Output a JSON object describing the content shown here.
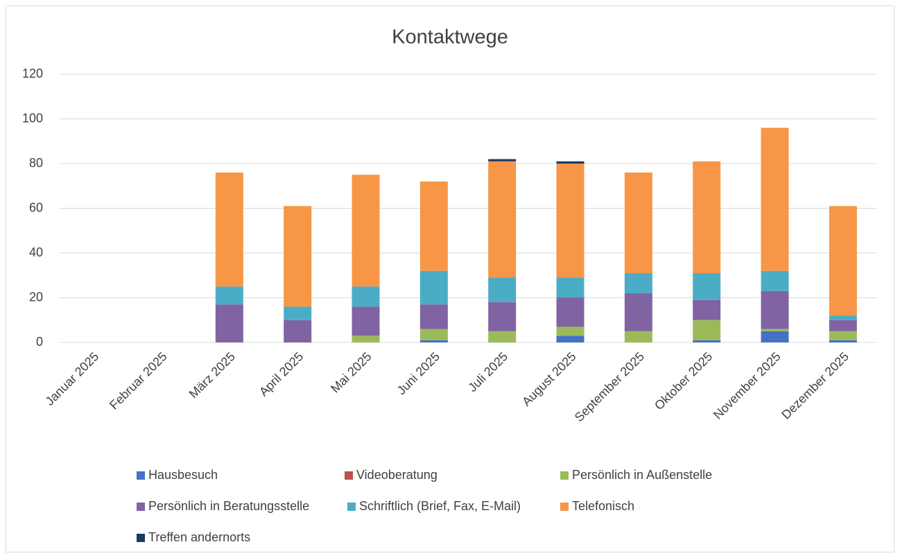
{
  "chart_data": {
    "type": "bar",
    "stacked": true,
    "title": "Kontaktwege",
    "categories": [
      "Januar 2025",
      "Februar 2025",
      "März 2025",
      "April 2025",
      "Mai 2025",
      "Juni 2025",
      "Juli 2025",
      "August 2025",
      "September 2025",
      "Oktober 2025",
      "November 2025",
      "Dezember 2025"
    ],
    "series": [
      {
        "name": "Hausbesuch",
        "color": "#4472c4",
        "values": [
          0,
          0,
          0,
          0,
          0,
          1,
          0,
          3,
          0,
          1,
          5,
          1
        ]
      },
      {
        "name": "Videoberatung",
        "color": "#c0504d",
        "values": [
          0,
          0,
          0,
          0,
          0,
          0,
          0,
          0,
          0,
          0,
          0,
          0
        ]
      },
      {
        "name": "Persönlich in Außenstelle",
        "color": "#9bbb59",
        "values": [
          0,
          0,
          0,
          0,
          3,
          5,
          5,
          4,
          5,
          9,
          1,
          4
        ]
      },
      {
        "name": "Persönlich in Beratungsstelle",
        "color": "#8064a2",
        "values": [
          0,
          0,
          17,
          10,
          13,
          11,
          13,
          13,
          17,
          9,
          17,
          5
        ]
      },
      {
        "name": "Schriftlich (Brief, Fax, E-Mail)",
        "color": "#4bacc6",
        "values": [
          0,
          0,
          8,
          6,
          9,
          15,
          11,
          9,
          9,
          12,
          9,
          2
        ]
      },
      {
        "name": "Telefonisch",
        "color": "#f79646",
        "values": [
          0,
          0,
          51,
          45,
          50,
          40,
          52,
          51,
          45,
          50,
          64,
          49
        ]
      },
      {
        "name": "Treffen andernorts",
        "color": "#1f3864",
        "values": [
          0,
          0,
          0,
          0,
          0,
          0,
          1,
          1,
          0,
          0,
          0,
          0
        ]
      }
    ],
    "ylim": [
      0,
      120
    ],
    "yticks": [
      0,
      20,
      40,
      60,
      80,
      100,
      120
    ],
    "grid": true,
    "legend": "bottom"
  }
}
